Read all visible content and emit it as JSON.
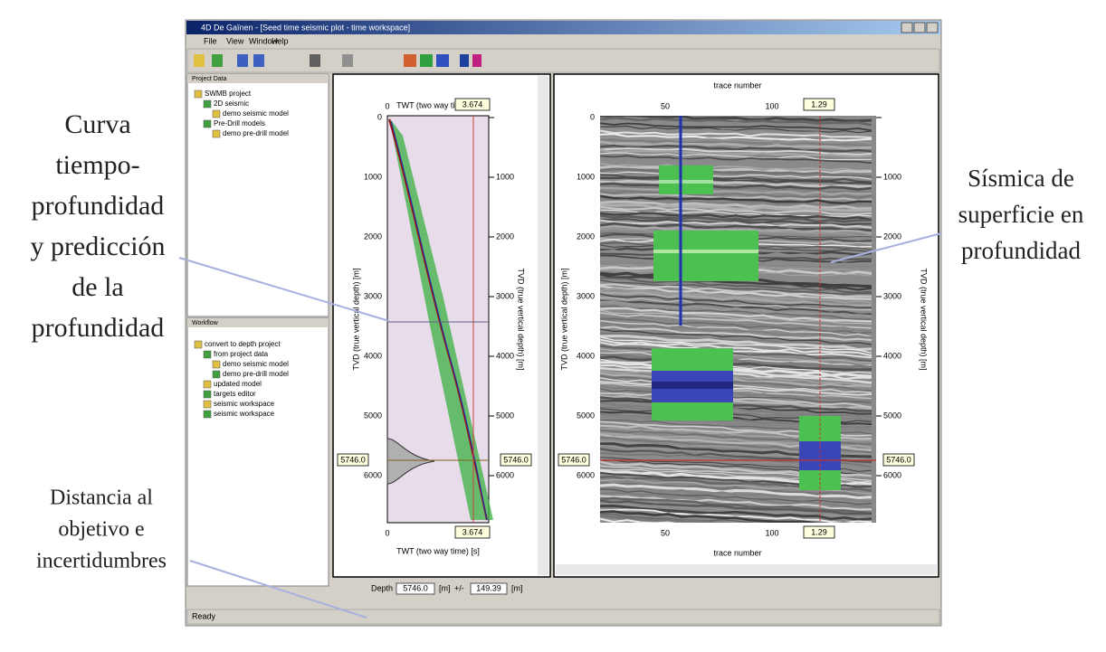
{
  "window": {
    "title": "4D De Gaïnen - [Seed time seismic plot - time workspace]",
    "menu": [
      "File",
      "View",
      "Window",
      "Help"
    ],
    "status": "Ready"
  },
  "project_panel": {
    "title": "Project Data",
    "items": [
      "SWMB project",
      "2D seismic",
      "demo seismic model",
      "Pre-Drill models",
      "demo pre-drill model"
    ]
  },
  "workflow_panel": {
    "title": "Workflow",
    "items": [
      "convert to depth project",
      "from project data",
      "demo seismic model",
      "demo pre-drill model",
      "updated model",
      "targets editor",
      "seismic workspace",
      "seismic workspace"
    ]
  },
  "well_plot": {
    "x_label": "TWT (two way time) [s]",
    "y_label": "TVD (true vertical depth) [m]",
    "x_ticks": [
      0
    ],
    "depth_ticks": [
      0,
      1000,
      2000,
      3000,
      4000,
      5000,
      6000
    ],
    "time_marker": "3.674",
    "depth_marker": "5746.0"
  },
  "seismic_plot": {
    "x_label": "trace number",
    "x_ticks": [
      50,
      100
    ],
    "y_label": "TVD (true vertical depth) [m]",
    "depth_ticks": [
      0,
      1000,
      2000,
      3000,
      4000,
      5000,
      6000
    ],
    "time_marker": "1.29",
    "depth_marker": "5746.0"
  },
  "depth_bar": {
    "label": "Depth",
    "value": "5746.0",
    "unit": "[m]",
    "pm": "+/-",
    "uncertainty": "149.39",
    "unit2": "[m]"
  },
  "annotations": {
    "left_top": [
      "Curva",
      "tiempo-",
      "profundidad",
      "y predicción",
      "de la",
      "profundidad"
    ],
    "right": [
      "Sísmica de",
      "superficie en",
      "profundidad"
    ],
    "left_bottom": [
      "Distancia al",
      "objetivo e",
      "incertidumbres"
    ]
  }
}
